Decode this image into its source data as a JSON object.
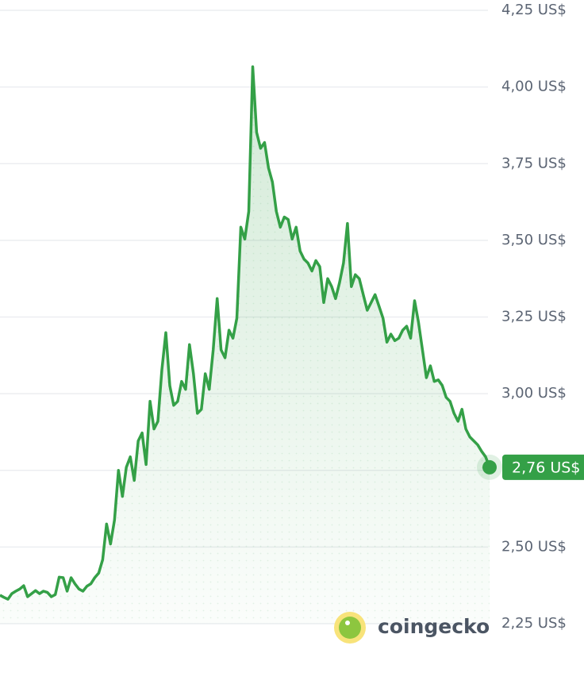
{
  "chart_data": {
    "type": "area-line",
    "color": "#34a047",
    "ylim": [
      2.25,
      4.25
    ],
    "yticks": [
      {
        "value": 2.25,
        "label": "2,25 US$"
      },
      {
        "value": 2.5,
        "label": "2,50 US$"
      },
      {
        "value": 2.75,
        "label": null
      },
      {
        "value": 3.0,
        "label": "3,00 US$"
      },
      {
        "value": 3.25,
        "label": "3,25 US$"
      },
      {
        "value": 3.5,
        "label": "3,50 US$"
      },
      {
        "value": 3.75,
        "label": "3,75 US$"
      },
      {
        "value": 4.0,
        "label": "4,00 US$"
      },
      {
        "value": 4.25,
        "label": "4,25 US$"
      }
    ],
    "grid": true,
    "values": [
      2.343,
      2.336,
      2.33,
      2.348,
      2.356,
      2.363,
      2.374,
      2.338,
      2.348,
      2.358,
      2.348,
      2.356,
      2.352,
      2.338,
      2.345,
      2.402,
      2.4,
      2.356,
      2.4,
      2.38,
      2.363,
      2.356,
      2.372,
      2.38,
      2.4,
      2.415,
      2.459,
      2.575,
      2.51,
      2.588,
      2.75,
      2.665,
      2.76,
      2.794,
      2.717,
      2.846,
      2.872,
      2.769,
      2.975,
      2.885,
      2.91,
      3.078,
      3.199,
      3.026,
      2.962,
      2.975,
      3.04,
      3.014,
      3.16,
      3.065,
      2.936,
      2.949,
      3.065,
      3.014,
      3.143,
      3.31,
      3.143,
      3.117,
      3.207,
      3.181,
      3.246,
      3.543,
      3.504,
      3.594,
      4.066,
      3.852,
      3.8,
      3.819,
      3.736,
      3.69,
      3.594,
      3.543,
      3.576,
      3.568,
      3.504,
      3.543,
      3.465,
      3.439,
      3.426,
      3.4,
      3.434,
      3.414,
      3.297,
      3.375,
      3.349,
      3.31,
      3.362,
      3.426,
      3.555,
      3.349,
      3.388,
      3.375,
      3.323,
      3.272,
      3.297,
      3.323,
      3.285,
      3.246,
      3.168,
      3.194,
      3.173,
      3.181,
      3.207,
      3.22,
      3.181,
      3.303,
      3.233,
      3.143,
      3.052,
      3.091,
      3.04,
      3.045,
      3.027,
      2.988,
      2.975,
      2.936,
      2.91,
      2.949,
      2.885,
      2.859,
      2.846,
      2.833,
      2.812,
      2.794,
      2.76
    ],
    "current_price": {
      "value": 2.76,
      "label": "2,76 US$"
    },
    "watermark": "coingecko"
  }
}
